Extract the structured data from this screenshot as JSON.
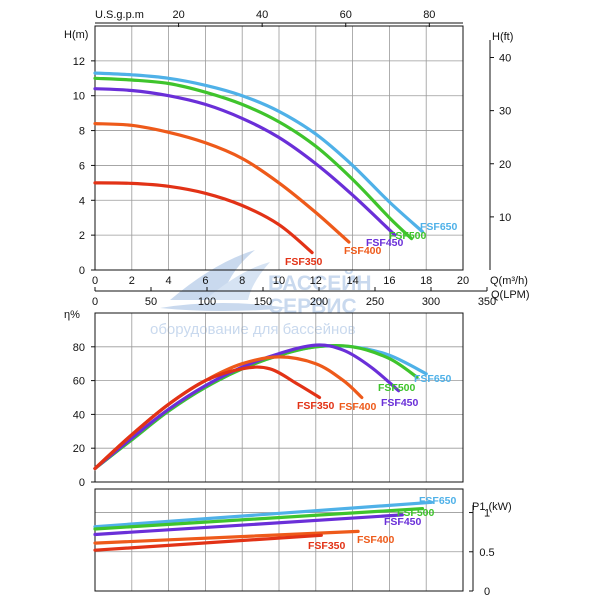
{
  "watermark": {
    "line1": "БАССЕЙН",
    "line2": "СЕРВИС",
    "line3": "оборудование для бассейнов",
    "color": "#c9d9ee"
  },
  "series_styles": [
    {
      "name": "FSF650",
      "color": "#4fb1e8"
    },
    {
      "name": "FSF500",
      "color": "#3fc42c"
    },
    {
      "name": "FSF450",
      "color": "#6a2fd8"
    },
    {
      "name": "FSF400",
      "color": "#ee5a1a"
    },
    {
      "name": "FSF350",
      "color": "#e23216"
    }
  ],
  "chart_data": [
    {
      "id": "head",
      "type": "line",
      "ylabel_left": "H(m)",
      "ylabel_right": "H(ft)",
      "xlabel": "Q(m³/h)",
      "xlabel_lpm": "Q(LPM)",
      "xlabel_top": "U.S.g.p.m",
      "xlim": [
        0,
        20
      ],
      "ylim": [
        0,
        14
      ],
      "xticks": [
        0,
        2,
        4,
        6,
        8,
        10,
        12,
        14,
        16,
        18,
        20
      ],
      "yticks": [
        0,
        2,
        4,
        6,
        8,
        10,
        12
      ],
      "yticks_right": [
        10,
        20,
        30,
        40
      ],
      "xticks_lpm": [
        0,
        50,
        100,
        150,
        200,
        250,
        300,
        350
      ],
      "xticks_gpm": [
        20,
        40,
        60,
        80
      ],
      "grid": true,
      "series": [
        {
          "name": "FSF650",
          "x": [
            0,
            2,
            4,
            6,
            8,
            10,
            12,
            14,
            16,
            17.8
          ],
          "y": [
            11.3,
            11.2,
            11.0,
            10.6,
            10.0,
            9.1,
            7.8,
            6.0,
            3.9,
            2.2
          ]
        },
        {
          "name": "FSF500",
          "x": [
            0,
            2,
            4,
            6,
            8,
            10,
            12,
            14,
            16,
            17.2
          ],
          "y": [
            11.0,
            10.9,
            10.7,
            10.2,
            9.5,
            8.5,
            7.1,
            5.2,
            3.0,
            1.8
          ]
        },
        {
          "name": "FSF450",
          "x": [
            0,
            2,
            4,
            6,
            8,
            10,
            12,
            14,
            16.3
          ],
          "y": [
            10.4,
            10.3,
            10.0,
            9.5,
            8.7,
            7.6,
            6.1,
            4.3,
            2.0
          ]
        },
        {
          "name": "FSF400",
          "x": [
            0,
            2,
            4,
            6,
            8,
            10,
            12,
            13.8
          ],
          "y": [
            8.4,
            8.3,
            7.9,
            7.3,
            6.4,
            5.0,
            3.3,
            1.6
          ]
        },
        {
          "name": "FSF350",
          "x": [
            0,
            2,
            4,
            6,
            8,
            10,
            11.8
          ],
          "y": [
            5.0,
            4.97,
            4.8,
            4.4,
            3.7,
            2.6,
            1.0
          ]
        }
      ]
    },
    {
      "id": "efficiency",
      "type": "line",
      "ylabel_left": "η%",
      "xlim": [
        0,
        20
      ],
      "ylim": [
        0,
        100
      ],
      "yticks": [
        0,
        20,
        40,
        60,
        80
      ],
      "grid": true,
      "series": [
        {
          "name": "FSF650",
          "x": [
            0,
            2,
            4,
            6,
            8,
            10,
            12,
            14,
            16,
            18
          ],
          "y": [
            8,
            25,
            42,
            56,
            67,
            75,
            80,
            80,
            75,
            64
          ]
        },
        {
          "name": "FSF500",
          "x": [
            0,
            2,
            4,
            6,
            8,
            10,
            12,
            14,
            16,
            17.5
          ],
          "y": [
            8,
            25,
            42,
            56,
            67,
            75,
            80,
            80,
            73,
            62
          ]
        },
        {
          "name": "FSF450",
          "x": [
            0,
            2,
            4,
            6,
            8,
            10,
            12,
            13.5,
            15,
            16.5
          ],
          "y": [
            8,
            26,
            43,
            57,
            68,
            76,
            81,
            78,
            68,
            54
          ]
        },
        {
          "name": "FSF400",
          "x": [
            0,
            2,
            4,
            6,
            8,
            10,
            12,
            13.5,
            14.5
          ],
          "y": [
            8,
            28,
            46,
            60,
            70,
            74,
            70,
            60,
            50
          ]
        },
        {
          "name": "FSF350",
          "x": [
            0,
            2,
            4,
            6,
            8,
            9.5,
            11,
            12.2
          ],
          "y": [
            8,
            28,
            46,
            60,
            67,
            67,
            58,
            50
          ]
        }
      ]
    },
    {
      "id": "power",
      "type": "line",
      "ylabel_right": "P1 (kW)",
      "xlim": [
        0,
        20
      ],
      "ylim": [
        0,
        1.3
      ],
      "yticks_right": [
        0,
        0.5,
        1
      ],
      "grid": true,
      "series": [
        {
          "name": "FSF650",
          "x": [
            0,
            18.3
          ],
          "y": [
            0.82,
            1.13
          ]
        },
        {
          "name": "FSF500",
          "x": [
            0,
            17.8
          ],
          "y": [
            0.79,
            1.05
          ]
        },
        {
          "name": "FSF450",
          "x": [
            0,
            16.7
          ],
          "y": [
            0.72,
            0.97
          ]
        },
        {
          "name": "FSF400",
          "x": [
            0,
            14.3
          ],
          "y": [
            0.61,
            0.76
          ]
        },
        {
          "name": "FSF350",
          "x": [
            0,
            12.3
          ],
          "y": [
            0.52,
            0.71
          ]
        }
      ]
    }
  ]
}
